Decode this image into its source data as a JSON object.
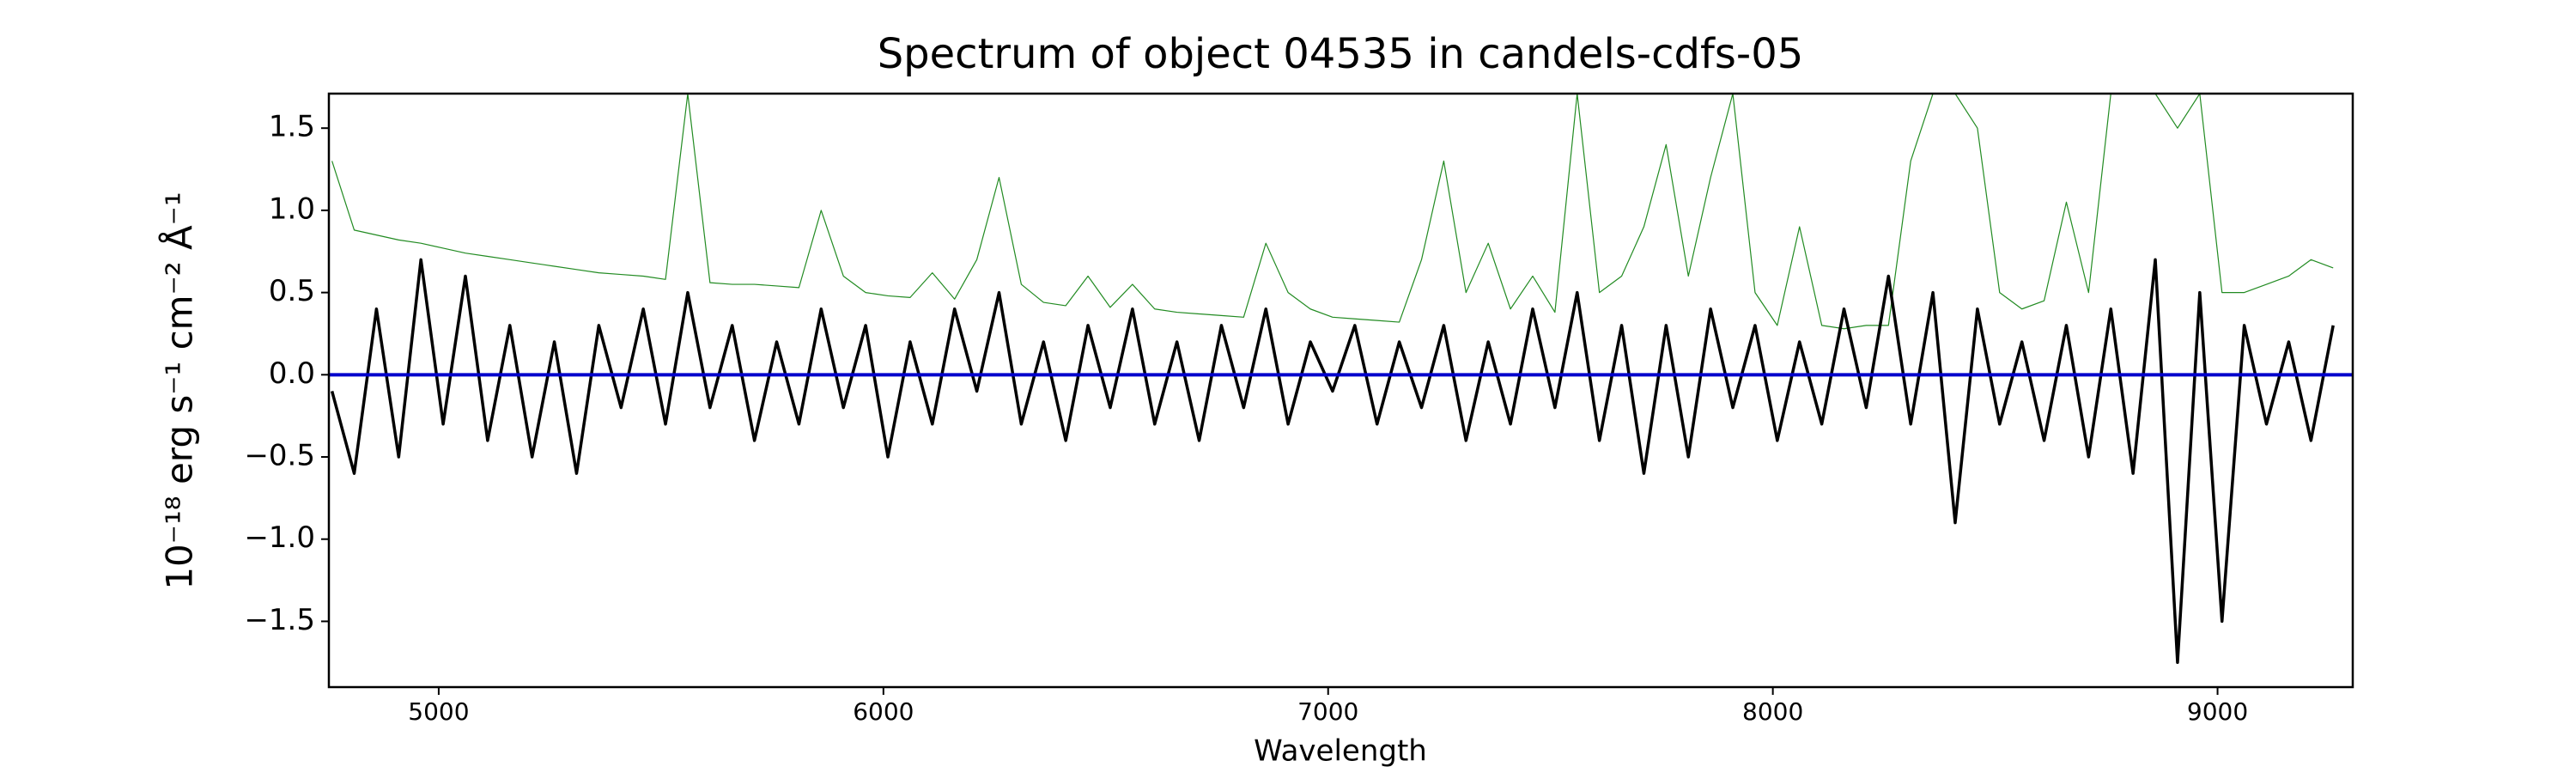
{
  "chart_data": {
    "type": "line",
    "title": "Spectrum of object 04535 in candels-cdfs-05",
    "x_label": "Wavelength",
    "y_label": "10⁻¹⁸ erg s⁻¹ cm⁻² Å⁻¹",
    "x": [
      4760,
      4810,
      4860,
      4910,
      4960,
      5010,
      5060,
      5110,
      5160,
      5210,
      5260,
      5310,
      5360,
      5410,
      5460,
      5510,
      5560,
      5610,
      5660,
      5710,
      5760,
      5810,
      5860,
      5910,
      5960,
      6010,
      6060,
      6110,
      6160,
      6210,
      6260,
      6310,
      6360,
      6410,
      6460,
      6510,
      6560,
      6610,
      6660,
      6710,
      6760,
      6810,
      6860,
      6910,
      6960,
      7010,
      7060,
      7110,
      7160,
      7210,
      7260,
      7310,
      7360,
      7410,
      7460,
      7510,
      7560,
      7610,
      7660,
      7710,
      7760,
      7810,
      7860,
      7910,
      7960,
      8010,
      8060,
      8110,
      8160,
      8210,
      8260,
      8310,
      8360,
      8410,
      8460,
      8510,
      8560,
      8610,
      8660,
      8710,
      8760,
      8810,
      8860,
      8910,
      8960,
      9010,
      9060,
      9110,
      9160,
      9210,
      9260
    ],
    "series": [
      {
        "color": "#228b22",
        "width": 1.2,
        "values": [
          1.3,
          0.88,
          0.85,
          0.82,
          0.8,
          0.77,
          0.74,
          0.72,
          0.7,
          0.68,
          0.66,
          0.64,
          0.62,
          0.61,
          0.6,
          0.58,
          1.71,
          0.56,
          0.55,
          0.55,
          0.54,
          0.53,
          1.0,
          0.6,
          0.5,
          0.48,
          0.47,
          0.62,
          0.46,
          0.7,
          1.2,
          0.55,
          0.44,
          0.42,
          0.6,
          0.41,
          0.55,
          0.4,
          0.38,
          0.37,
          0.36,
          0.35,
          0.8,
          0.5,
          0.4,
          0.35,
          0.34,
          0.33,
          0.32,
          0.7,
          1.3,
          0.5,
          0.8,
          0.4,
          0.6,
          0.38,
          1.71,
          0.5,
          0.6,
          0.9,
          1.4,
          0.6,
          1.2,
          1.71,
          0.5,
          0.3,
          0.9,
          0.3,
          0.28,
          0.3,
          0.3,
          1.3,
          1.71,
          1.71,
          1.5,
          0.5,
          0.4,
          0.45,
          1.05,
          0.5,
          1.71,
          1.71,
          1.71,
          1.5,
          1.71,
          0.5,
          0.5,
          0.55,
          0.6,
          0.7,
          0.65
        ]
      },
      {
        "color": "#000000",
        "width": 3.5,
        "values": [
          -0.1,
          -0.6,
          0.4,
          -0.5,
          0.7,
          -0.3,
          0.6,
          -0.4,
          0.3,
          -0.5,
          0.2,
          -0.6,
          0.3,
          -0.2,
          0.4,
          -0.3,
          0.5,
          -0.2,
          0.3,
          -0.4,
          0.2,
          -0.3,
          0.4,
          -0.2,
          0.3,
          -0.5,
          0.2,
          -0.3,
          0.4,
          -0.1,
          0.5,
          -0.3,
          0.2,
          -0.4,
          0.3,
          -0.2,
          0.4,
          -0.3,
          0.2,
          -0.4,
          0.3,
          -0.2,
          0.4,
          -0.3,
          0.2,
          -0.1,
          0.3,
          -0.3,
          0.2,
          -0.2,
          0.3,
          -0.4,
          0.2,
          -0.3,
          0.4,
          -0.2,
          0.5,
          -0.4,
          0.3,
          -0.6,
          0.3,
          -0.5,
          0.4,
          -0.2,
          0.3,
          -0.4,
          0.2,
          -0.3,
          0.4,
          -0.2,
          0.6,
          -0.3,
          0.5,
          -0.9,
          0.4,
          -0.3,
          0.2,
          -0.4,
          0.3,
          -0.5,
          0.4,
          -0.6,
          0.7,
          -1.75,
          0.5,
          -1.5,
          0.3,
          -0.3,
          0.2,
          -0.4,
          0.3
        ]
      }
    ],
    "hlines": [
      {
        "y": 0,
        "color": "#0000cc"
      }
    ],
    "xlim": [
      4753,
      9304
    ],
    "ylim": [
      -1.9,
      1.71
    ],
    "xticks": [
      5000,
      6000,
      7000,
      8000,
      9000
    ],
    "yticks": [
      {
        "value": -1.5,
        "label": "−1.5"
      },
      {
        "value": -1.0,
        "label": "−1.0"
      },
      {
        "value": -0.5,
        "label": "−0.5"
      },
      {
        "value": 0,
        "label": "0.0"
      },
      0.5,
      {
        "value": 1.0,
        "label": "1.0"
      },
      1.5
    ]
  }
}
